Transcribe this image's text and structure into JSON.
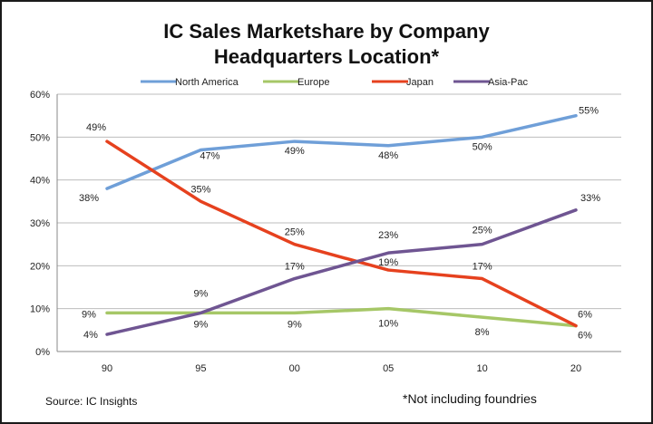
{
  "chart_data": {
    "type": "line",
    "title_line1": "IC Sales Marketshare by Company",
    "title_line2": "Headquarters Location*",
    "categories": [
      "90",
      "95",
      "00",
      "05",
      "10",
      "20"
    ],
    "ylim": [
      0,
      60
    ],
    "yticks": [
      "0%",
      "10%",
      "20%",
      "30%",
      "40%",
      "50%",
      "60%"
    ],
    "grid": true,
    "legend_position": "top",
    "series": [
      {
        "name": "North America",
        "color": "#6f9fd8",
        "values": [
          38,
          47,
          49,
          48,
          50,
          55
        ],
        "labels": [
          "38%",
          "47%",
          "49%",
          "48%",
          "50%",
          "55%"
        ]
      },
      {
        "name": "Europe",
        "color": "#a6c767",
        "values": [
          9,
          9,
          9,
          10,
          8,
          6
        ],
        "labels": [
          "9%",
          "9%",
          "9%",
          "10%",
          "8%",
          "6%"
        ]
      },
      {
        "name": "Japan",
        "color": "#e6411e",
        "values": [
          49,
          35,
          25,
          19,
          17,
          6
        ],
        "labels": [
          "49%",
          "35%",
          "25%",
          "19%",
          "17%",
          "6%"
        ]
      },
      {
        "name": "Asia-Pac",
        "color": "#6f5592",
        "values": [
          4,
          9,
          17,
          23,
          25,
          33
        ],
        "labels": [
          "4%",
          "9%",
          "17%",
          "23%",
          "25%",
          "33%"
        ]
      }
    ]
  },
  "footer": {
    "source": "Source:  IC Insights",
    "note": "*Not including foundries"
  }
}
